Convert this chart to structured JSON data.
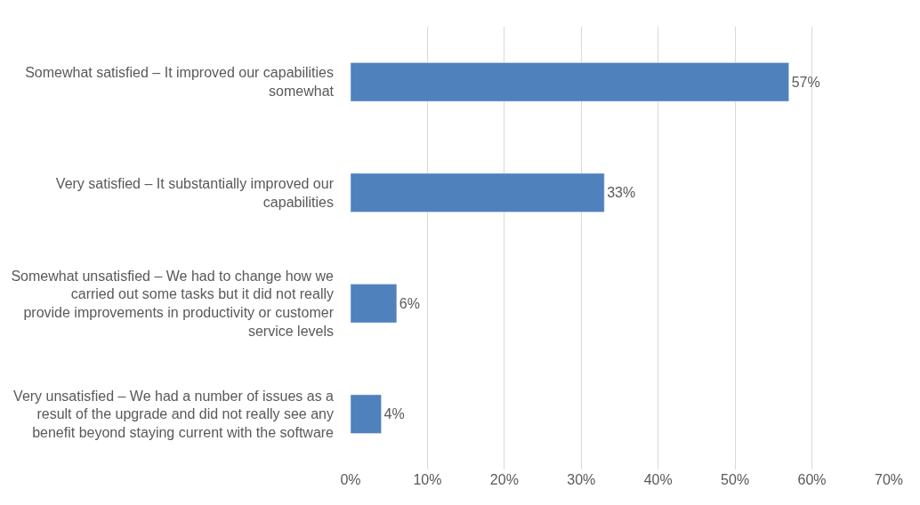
{
  "chart_data": {
    "type": "bar",
    "orientation": "horizontal",
    "categories": [
      "Somewhat satisfied – It improved our capabilities somewhat",
      "Very satisfied – It substantially improved our capabilities",
      "Somewhat unsatisfied – We had to change how we carried out some tasks but it did not really provide improvements in productivity or customer service levels",
      "Very unsatisfied – We had a number of issues as a result of the upgrade and did not really see any benefit beyond staying current with the software"
    ],
    "values": [
      57,
      33,
      6,
      4
    ],
    "value_labels": [
      "57%",
      "33%",
      "6%",
      "4%"
    ],
    "color": "#4f81bd",
    "xlim": [
      0,
      70
    ],
    "xticks": [
      {
        "value": 0,
        "label": "0%"
      },
      {
        "value": 10,
        "label": "10%"
      },
      {
        "value": 20,
        "label": "20%"
      },
      {
        "value": 30,
        "label": "30%"
      },
      {
        "value": 40,
        "label": "40%"
      },
      {
        "value": 50,
        "label": "50%"
      },
      {
        "value": 60,
        "label": "60%"
      },
      {
        "value": 70,
        "label": "70%"
      }
    ],
    "grid": "x",
    "legend": false
  }
}
